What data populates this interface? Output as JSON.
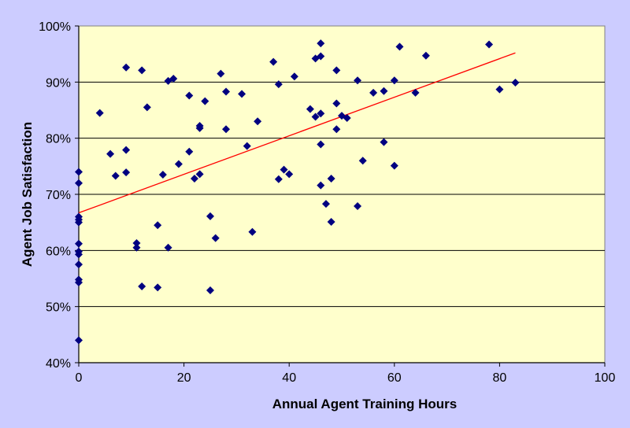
{
  "chart_data": {
    "type": "scatter",
    "title": "",
    "xlabel": "Annual Agent Training Hours",
    "ylabel": "Agent Job Satisfaction",
    "xlim": [
      0,
      100
    ],
    "ylim": [
      40,
      100
    ],
    "x_ticks": [
      "0",
      "20",
      "40",
      "60",
      "80",
      "100"
    ],
    "y_ticks": [
      "40%",
      "50%",
      "60%",
      "70%",
      "80%",
      "90%",
      "100%"
    ],
    "grid": "horizontal",
    "legend": "none",
    "colors": {
      "plot_background": "#ffffcc",
      "page_background": "#ccccff",
      "points": "#000080",
      "trendline": "#ff0000"
    },
    "series": [
      {
        "points": [
          [
            0,
            74.0
          ],
          [
            0,
            72.0
          ],
          [
            0,
            66.0
          ],
          [
            0,
            65.5
          ],
          [
            0,
            65.0
          ],
          [
            0,
            61.2
          ],
          [
            0,
            59.8
          ],
          [
            0,
            59.3
          ],
          [
            0,
            57.5
          ],
          [
            0,
            54.8
          ],
          [
            0,
            54.3
          ],
          [
            0,
            44.0
          ],
          [
            4,
            84.5
          ],
          [
            6,
            77.2
          ],
          [
            7,
            73.3
          ],
          [
            9,
            92.6
          ],
          [
            9,
            77.9
          ],
          [
            9,
            73.9
          ],
          [
            11,
            61.3
          ],
          [
            11,
            60.5
          ],
          [
            12,
            92.1
          ],
          [
            12,
            53.6
          ],
          [
            13,
            85.5
          ],
          [
            15,
            64.5
          ],
          [
            15,
            53.4
          ],
          [
            16,
            73.5
          ],
          [
            17,
            90.2
          ],
          [
            17,
            60.5
          ],
          [
            18,
            90.6
          ],
          [
            19,
            75.4
          ],
          [
            21,
            87.6
          ],
          [
            21,
            77.6
          ],
          [
            22,
            72.8
          ],
          [
            23,
            82.2
          ],
          [
            23,
            81.8
          ],
          [
            23,
            73.6
          ],
          [
            24,
            86.6
          ],
          [
            25,
            66.1
          ],
          [
            25,
            52.9
          ],
          [
            26,
            62.2
          ],
          [
            27,
            91.5
          ],
          [
            28,
            88.3
          ],
          [
            28,
            81.6
          ],
          [
            31,
            87.9
          ],
          [
            32,
            78.6
          ],
          [
            33,
            63.3
          ],
          [
            34,
            83.0
          ],
          [
            37,
            93.6
          ],
          [
            38,
            89.6
          ],
          [
            38,
            72.7
          ],
          [
            39,
            74.4
          ],
          [
            40,
            73.6
          ],
          [
            41,
            91.0
          ],
          [
            44,
            85.2
          ],
          [
            45,
            94.2
          ],
          [
            45,
            83.8
          ],
          [
            46,
            96.9
          ],
          [
            46,
            94.6
          ],
          [
            46,
            84.4
          ],
          [
            46,
            78.9
          ],
          [
            46,
            71.6
          ],
          [
            47,
            68.3
          ],
          [
            48,
            72.8
          ],
          [
            48,
            65.1
          ],
          [
            49,
            92.1
          ],
          [
            49,
            86.2
          ],
          [
            49,
            81.6
          ],
          [
            50,
            84.0
          ],
          [
            51,
            83.6
          ],
          [
            53,
            90.3
          ],
          [
            53,
            67.9
          ],
          [
            54,
            76.0
          ],
          [
            56,
            88.1
          ],
          [
            58,
            88.4
          ],
          [
            58,
            79.3
          ],
          [
            60,
            90.3
          ],
          [
            60,
            75.1
          ],
          [
            61,
            96.3
          ],
          [
            64,
            88.1
          ],
          [
            66,
            94.7
          ],
          [
            78,
            96.7
          ],
          [
            80,
            88.7
          ],
          [
            83,
            89.9
          ]
        ]
      }
    ],
    "trendline": {
      "x": [
        0,
        83
      ],
      "y": [
        66.7,
        95.2
      ]
    }
  }
}
